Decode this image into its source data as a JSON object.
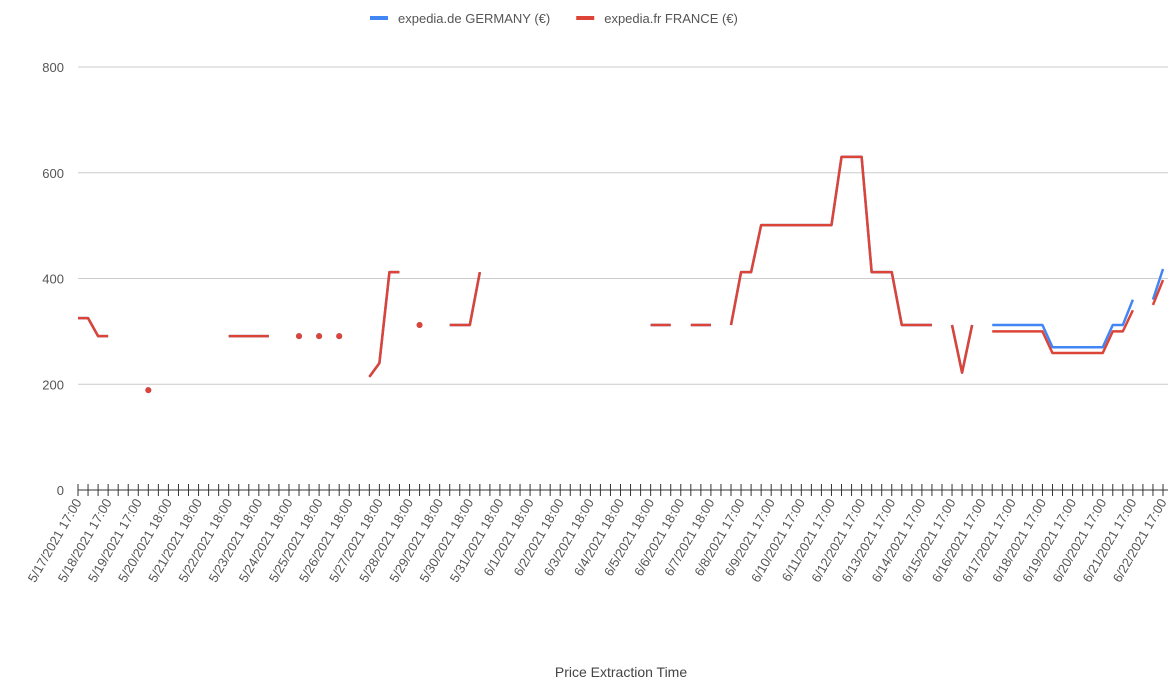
{
  "chart_data": {
    "type": "line",
    "x_label": "Price Extraction Time",
    "categories": [
      "5/17/2021 17:00",
      null,
      null,
      "5/18/2021 17:00",
      null,
      null,
      "5/19/2021 17:00",
      null,
      null,
      "5/20/2021 18:00",
      null,
      null,
      "5/21/2021 18:00",
      null,
      null,
      "5/22/2021 18:00",
      null,
      null,
      "5/23/2021 18:00",
      null,
      null,
      "5/24/2021 18:00",
      null,
      null,
      "5/25/2021 18:00",
      null,
      null,
      "5/26/2021 18:00",
      null,
      null,
      "5/27/2021 18:00",
      null,
      null,
      "5/28/2021 18:00",
      null,
      null,
      "5/29/2021 18:00",
      null,
      null,
      "5/30/2021 18:00",
      null,
      null,
      "5/31/2021 18:00",
      null,
      null,
      "6/1/2021 18:00",
      null,
      null,
      "6/2/2021 18:00",
      null,
      null,
      "6/3/2021 18:00",
      null,
      null,
      "6/4/2021 18:00",
      null,
      null,
      "6/5/2021 18:00",
      null,
      null,
      "6/6/2021 18:00",
      null,
      null,
      "6/7/2021 18:00",
      null,
      null,
      "6/8/2021 17:00",
      null,
      null,
      "6/9/2021 17:00",
      null,
      null,
      "6/10/2021 17:00",
      null,
      null,
      "6/11/2021 17:00",
      null,
      null,
      "6/12/2021 17:00",
      null,
      null,
      "6/13/2021 17:00",
      null,
      null,
      "6/14/2021 17:00",
      null,
      null,
      "6/15/2021 17:00",
      null,
      null,
      "6/16/2021 17:00",
      null,
      null,
      "6/17/2021 17:00",
      null,
      null,
      "6/18/2021 17:00",
      null,
      null,
      "6/19/2021 17:00",
      null,
      null,
      "6/20/2021 17:00",
      null,
      null,
      "6/21/2021 17:00",
      null,
      null,
      "6/22/2021 17:00"
    ],
    "series": [
      {
        "name": "expedia.de GERMANY (€)",
        "color": "#4285f4",
        "values": [
          325,
          325,
          291,
          291,
          null,
          null,
          null,
          189,
          null,
          null,
          null,
          null,
          null,
          null,
          null,
          291,
          291,
          291,
          291,
          291,
          null,
          null,
          291,
          null,
          291,
          null,
          291,
          null,
          null,
          214,
          240,
          412,
          412,
          null,
          312,
          null,
          null,
          312,
          312,
          312,
          412,
          null,
          null,
          null,
          null,
          null,
          null,
          null,
          null,
          null,
          null,
          null,
          null,
          null,
          null,
          null,
          null,
          312,
          312,
          312,
          null,
          312,
          312,
          312,
          null,
          312,
          412,
          412,
          501,
          501,
          501,
          501,
          501,
          501,
          501,
          501,
          630,
          630,
          630,
          412,
          412,
          412,
          312,
          312,
          312,
          312,
          null,
          312,
          222,
          312,
          null,
          312,
          312,
          312,
          312,
          312,
          312,
          270,
          270,
          270,
          270,
          270,
          270,
          312,
          312,
          360,
          null,
          360,
          418
        ]
      },
      {
        "name": "expedia.fr FRANCE (€)",
        "color": "#db4437",
        "values": [
          325,
          325,
          291,
          291,
          null,
          null,
          null,
          189,
          null,
          null,
          null,
          null,
          null,
          null,
          null,
          291,
          291,
          291,
          291,
          291,
          null,
          null,
          291,
          null,
          291,
          null,
          291,
          null,
          null,
          214,
          240,
          412,
          412,
          null,
          312,
          null,
          null,
          312,
          312,
          312,
          412,
          null,
          null,
          null,
          null,
          null,
          null,
          null,
          null,
          null,
          null,
          null,
          null,
          null,
          null,
          null,
          null,
          312,
          312,
          312,
          null,
          312,
          312,
          312,
          null,
          312,
          412,
          412,
          501,
          501,
          501,
          501,
          501,
          501,
          501,
          501,
          630,
          630,
          630,
          412,
          412,
          412,
          312,
          312,
          312,
          312,
          null,
          312,
          222,
          312,
          null,
          300,
          300,
          300,
          300,
          300,
          300,
          259,
          259,
          259,
          259,
          259,
          259,
          300,
          300,
          340,
          null,
          350,
          397
        ]
      }
    ],
    "ylim": [
      0,
      800
    ],
    "yticks": [
      0,
      200,
      400,
      600,
      800
    ],
    "grid": true,
    "legend": "top"
  }
}
